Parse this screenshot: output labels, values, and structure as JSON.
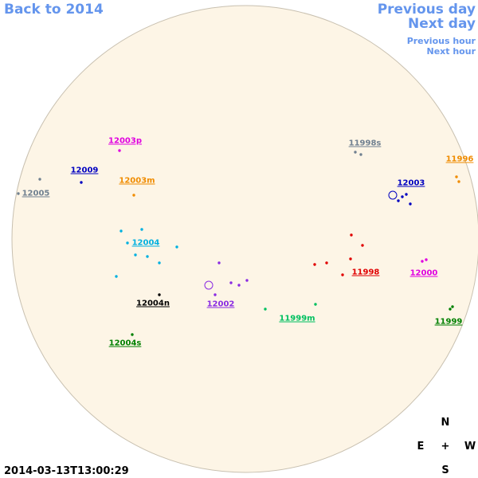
{
  "navigation": {
    "back": "Back to 2014",
    "previous_day": "Previous day",
    "next_day": "Next day",
    "previous_hour": "Previous hour",
    "next_hour": "Next hour"
  },
  "regions": [
    {
      "label": "12003p",
      "color": "#e000e0"
    },
    {
      "label": "12009",
      "color": "#0000c0"
    },
    {
      "label": "12003m",
      "color": "#f08c00"
    },
    {
      "label": "12005",
      "color": "#708090"
    },
    {
      "label": "11998s",
      "color": "#708090"
    },
    {
      "label": "11996",
      "color": "#f08c00"
    },
    {
      "label": "12003",
      "color": "#0000c0"
    },
    {
      "label": "12004",
      "color": "#00b0e0"
    },
    {
      "label": "11998",
      "color": "#e00000"
    },
    {
      "label": "12000",
      "color": "#e000e0"
    },
    {
      "label": "12004n",
      "color": "#000000"
    },
    {
      "label": "12002",
      "color": "#8a2be2"
    },
    {
      "label": "11999m",
      "color": "#00c060"
    },
    {
      "label": "11999",
      "color": "#008000"
    },
    {
      "label": "12004s",
      "color": "#008000"
    }
  ],
  "compass": {
    "north": "N",
    "east": "E",
    "center": "+",
    "west": "W",
    "south": "S"
  },
  "timestamp": "2014-03-13T13:00:29"
}
